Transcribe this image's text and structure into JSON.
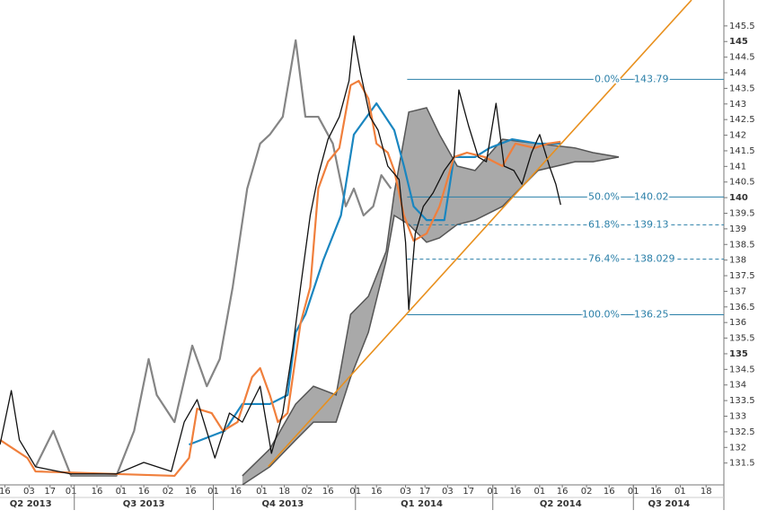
{
  "chart_data": {
    "type": "line",
    "xlim": [
      0,
      448
    ],
    "ylim": [
      130.8,
      146.33
    ],
    "yticks": [
      131.5,
      132,
      132.5,
      133,
      133.5,
      134,
      134.5,
      135,
      135.5,
      136,
      136.5,
      137,
      137.5,
      138,
      138.5,
      139,
      139.5,
      140,
      140.5,
      141,
      141.5,
      142,
      142.5,
      143,
      143.5,
      144,
      144.5,
      145,
      145.5
    ],
    "xticks": [
      {
        "value": 3,
        "label": "16"
      },
      {
        "value": 18,
        "label": "03"
      },
      {
        "value": 31,
        "label": "17"
      },
      {
        "value": 44,
        "label": "01"
      },
      {
        "value": 60,
        "label": "16"
      },
      {
        "value": 75,
        "label": "01"
      },
      {
        "value": 89,
        "label": "16"
      },
      {
        "value": 104,
        "label": "02"
      },
      {
        "value": 118,
        "label": "16"
      },
      {
        "value": 132,
        "label": "01"
      },
      {
        "value": 146,
        "label": "16"
      },
      {
        "value": 162,
        "label": "01"
      },
      {
        "value": 176,
        "label": "18"
      },
      {
        "value": 190,
        "label": "02"
      },
      {
        "value": 203,
        "label": "16"
      },
      {
        "value": 220,
        "label": "01"
      },
      {
        "value": 233,
        "label": "16"
      },
      {
        "value": 251,
        "label": "03"
      },
      {
        "value": 263,
        "label": "17"
      },
      {
        "value": 277,
        "label": "03"
      },
      {
        "value": 290,
        "label": "17"
      },
      {
        "value": 305,
        "label": "01"
      },
      {
        "value": 319,
        "label": "16"
      },
      {
        "value": 334,
        "label": "01"
      },
      {
        "value": 348,
        "label": "16"
      },
      {
        "value": 363,
        "label": "02"
      },
      {
        "value": 377,
        "label": "16"
      },
      {
        "value": 392,
        "label": "01"
      },
      {
        "value": 406,
        "label": "16"
      },
      {
        "value": 421,
        "label": "01"
      },
      {
        "value": 437,
        "label": "18"
      }
    ],
    "quarter_ticks": [
      46,
      132,
      220,
      305,
      392
    ],
    "quarters": [
      {
        "value": 19,
        "label": "Q2 2013"
      },
      {
        "value": 89,
        "label": "Q3 2013"
      },
      {
        "value": 175,
        "label": "Q4 2013"
      },
      {
        "value": 261,
        "label": "Q1 2014"
      },
      {
        "value": 347,
        "label": "Q2 2014"
      },
      {
        "value": 414,
        "label": "Q3 2014"
      }
    ],
    "cloud": {
      "color": "#a9a9a9",
      "edge": "#555555",
      "x": [
        150,
        167,
        183,
        194,
        208,
        217,
        228,
        239,
        244,
        253,
        264,
        272,
        283,
        294,
        311,
        333,
        356,
        367,
        383
      ],
      "upper": [
        131.09,
        131.95,
        133.39,
        133.96,
        133.68,
        136.26,
        136.84,
        138.28,
        140.15,
        142.74,
        142.88,
        142.02,
        141.01,
        140.87,
        141.87,
        141.73,
        141.59,
        141.44,
        141.3
      ],
      "lower": [
        130.8,
        131.38,
        132.24,
        132.81,
        132.81,
        134.25,
        135.69,
        137.99,
        139.43,
        139.14,
        138.57,
        138.71,
        139.14,
        139.28,
        139.72,
        140.87,
        141.15,
        141.15,
        141.3
      ]
    },
    "series": [
      {
        "color": "#858585",
        "x": [
          22,
          33,
          44,
          72,
          83,
          92,
          97,
          108,
          119,
          128,
          136,
          144,
          153,
          161,
          167,
          175,
          183,
          189,
          197,
          206,
          214,
          219,
          225,
          231,
          236,
          242
        ],
        "values": [
          131.38,
          132.53,
          131.09,
          131.09,
          132.53,
          134.83,
          133.68,
          132.81,
          135.26,
          133.96,
          134.83,
          137.13,
          140.29,
          141.73,
          142.02,
          142.59,
          145.04,
          142.59,
          142.59,
          141.73,
          139.72,
          140.29,
          139.43,
          139.72,
          140.72,
          140.29
        ]
      },
      {
        "color": "#1a86c0",
        "x": [
          117,
          139,
          150,
          167,
          178,
          183,
          189,
          200,
          211,
          219,
          233,
          244,
          250,
          256,
          264,
          275,
          281,
          294,
          303,
          317,
          333,
          347
        ],
        "values": [
          132.09,
          132.53,
          133.39,
          133.39,
          133.68,
          135.69,
          136.26,
          137.99,
          139.43,
          142.02,
          143.02,
          142.16,
          141.01,
          139.72,
          139.28,
          139.28,
          141.3,
          141.3,
          141.59,
          141.87,
          141.73,
          141.73
        ]
      },
      {
        "color": "#f07f3c",
        "x": [
          0,
          17,
          22,
          108,
          117,
          122,
          131,
          138,
          147,
          156,
          161,
          167,
          172,
          178,
          186,
          192,
          197,
          203,
          210,
          217,
          222,
          228,
          233,
          240,
          244,
          250,
          256,
          264,
          272,
          281,
          289,
          300,
          311,
          319,
          331,
          339,
          347
        ],
        "values": [
          132.24,
          131.66,
          131.23,
          131.09,
          131.66,
          133.24,
          133.1,
          132.53,
          132.81,
          134.25,
          134.54,
          133.68,
          132.81,
          133.1,
          135.98,
          137.13,
          140.29,
          141.15,
          141.59,
          143.6,
          143.74,
          143.17,
          141.73,
          141.44,
          140.87,
          139.43,
          138.62,
          138.85,
          139.72,
          141.3,
          141.44,
          141.3,
          141.01,
          141.73,
          141.59,
          141.73,
          141.79
        ]
      },
      {
        "color": "#111111",
        "x": [
          0,
          7,
          12,
          22,
          44,
          72,
          89,
          106,
          114,
          122,
          133,
          142,
          150,
          161,
          168,
          175,
          181,
          186,
          192,
          197,
          203,
          210,
          216,
          219,
          223,
          229,
          234,
          240,
          247,
          251,
          253,
          257,
          262,
          268,
          275,
          281,
          284,
          290,
          296,
          301,
          307,
          312,
          318,
          323,
          329,
          334,
          340,
          344,
          347
        ],
        "values": [
          132.09,
          133.82,
          132.24,
          131.38,
          131.15,
          131.15,
          131.52,
          131.23,
          132.81,
          133.53,
          131.66,
          133.1,
          132.81,
          133.96,
          131.81,
          133.1,
          135.11,
          137.13,
          139.43,
          140.72,
          141.87,
          142.59,
          143.74,
          145.18,
          144.03,
          142.59,
          142.16,
          141.01,
          140.58,
          138.57,
          136.41,
          138.85,
          139.72,
          140.15,
          140.87,
          141.3,
          143.45,
          142.3,
          141.3,
          141.15,
          143.02,
          141.01,
          140.87,
          140.43,
          141.44,
          142.02,
          141.01,
          140.43,
          139.77
        ]
      }
    ],
    "trendline": {
      "color": "#e8901e",
      "x": [
        166,
        428
      ],
      "values": [
        131.39,
        146.33
      ]
    },
    "fib": {
      "color": "#2a7fa8",
      "x_start": 252,
      "levels": [
        {
          "label": "0.0%",
          "value": 143.79,
          "dashed": false
        },
        {
          "label": "50.0%",
          "value": 140.02,
          "dashed": false
        },
        {
          "label": "61.8%",
          "value": 139.13,
          "dashed": true
        },
        {
          "label": "76.4%",
          "value": 138.029,
          "dashed": true
        },
        {
          "label": "100.0%",
          "value": 136.25,
          "dashed": false
        }
      ]
    }
  }
}
